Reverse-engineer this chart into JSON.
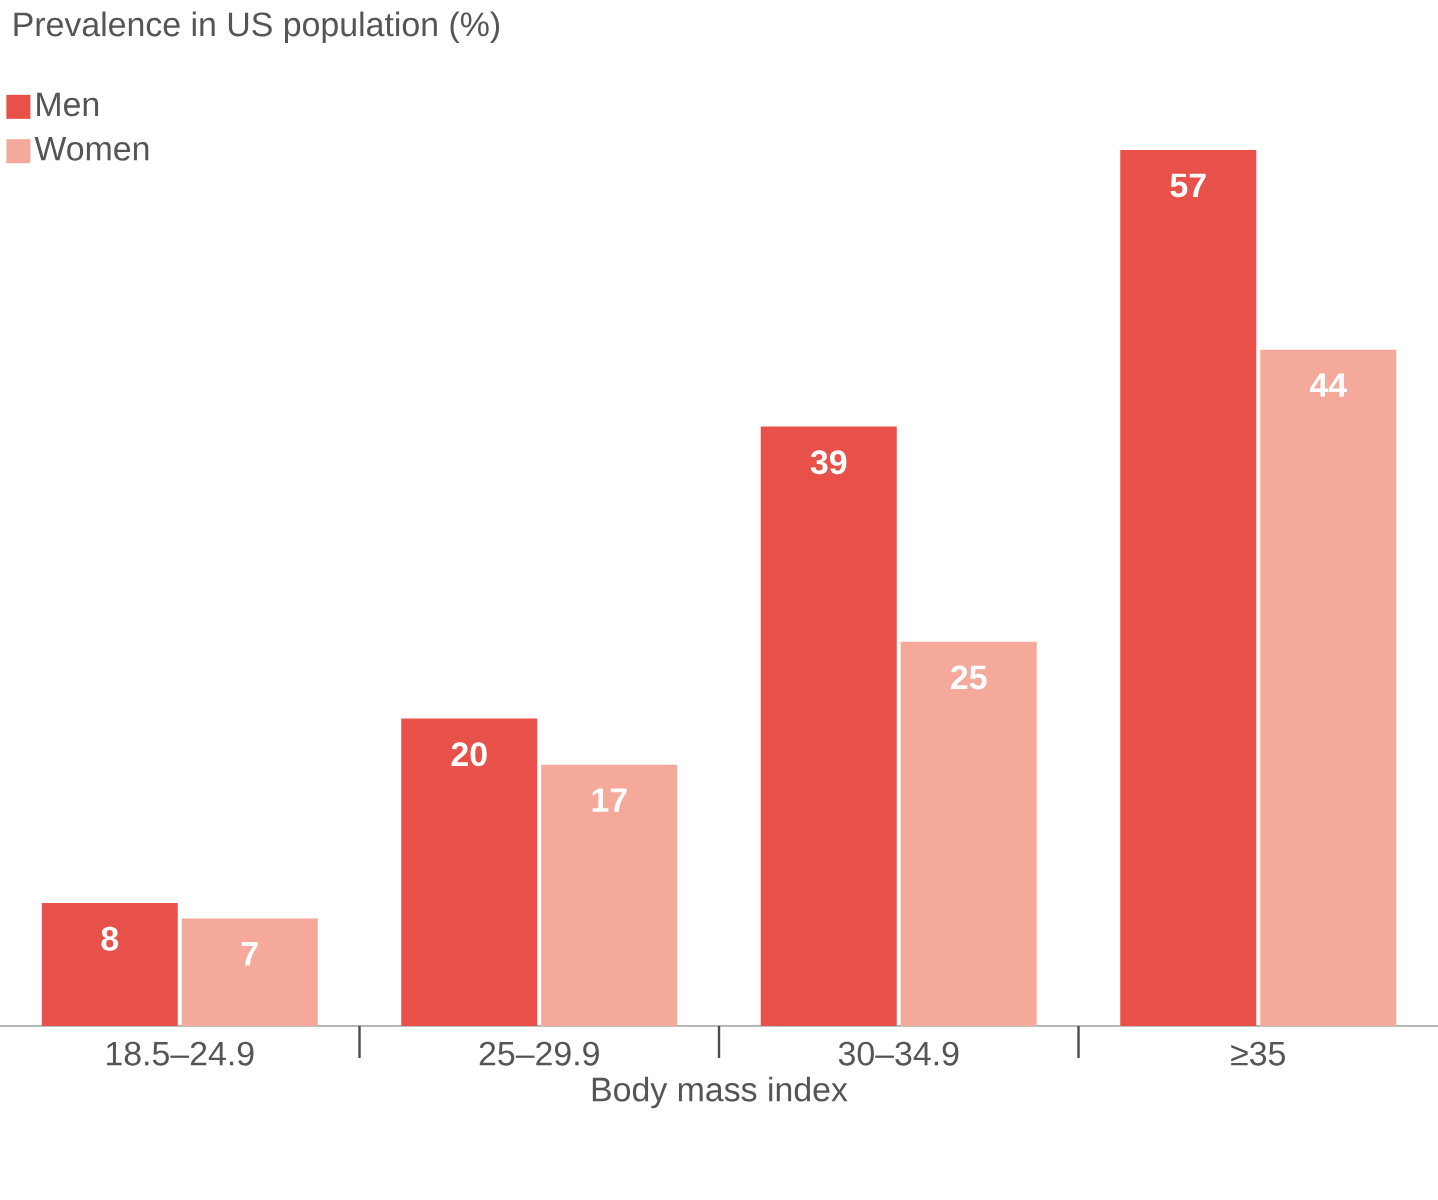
{
  "chart_data": {
    "type": "bar",
    "title": "Prevalence in US population (%)",
    "xlabel": "Body mass index",
    "categories": [
      "18.5–24.9",
      "25–29.9",
      "30–34.9",
      "≥35"
    ],
    "series": [
      {
        "name": "Men",
        "color": "#e8504a",
        "values": [
          8,
          20,
          39,
          57
        ]
      },
      {
        "name": "Women",
        "color": "#f4a99a",
        "values": [
          7,
          17,
          25,
          44
        ]
      }
    ],
    "data_labels": true,
    "legend": "top left"
  }
}
